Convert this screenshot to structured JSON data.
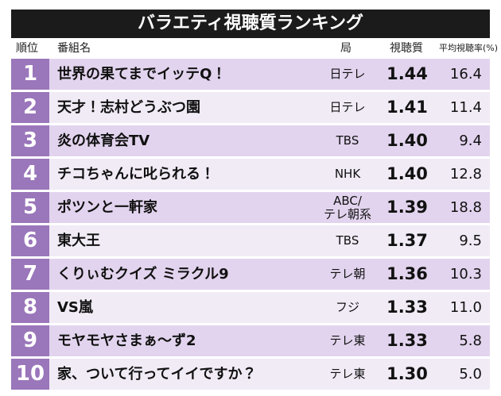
{
  "title": "バラエティ視聴質ランキング",
  "table": {
    "header": [
      "順位",
      "番組名",
      "局",
      "視聴質",
      "平均視聴率(%)"
    ],
    "rows": [
      [
        "1",
        "世界の果てまでイッテQ！",
        "日テレ",
        "1.44",
        "16.4"
      ],
      [
        "2",
        "天才！志村どうぶつ園",
        "日テレ",
        "1.41",
        "11.4"
      ],
      [
        "3",
        "炎の体育会TV",
        "TBS",
        "1.40",
        "9.4"
      ],
      [
        "4",
        "チコちゃんに叱られる！",
        "NHK",
        "1.40",
        "12.8"
      ],
      [
        "5",
        "ポツンと一軒家",
        [
          "ABC/",
          "テレ朝系"
        ],
        "1.39",
        "18.8"
      ],
      [
        "6",
        "東大王",
        "TBS",
        "1.37",
        "9.5"
      ],
      [
        "7",
        "くりぃむクイズ ミラクル9",
        "テレ朝",
        "1.36",
        "10.3"
      ],
      [
        "8",
        "VS嵐",
        "フジ",
        "1.33",
        "11.0"
      ],
      [
        "9",
        "モヤモヤさまぁ～ず2",
        "テレ東",
        "1.33",
        "5.8"
      ],
      [
        "10",
        "家、ついて行ってイイですか？",
        "テレ東",
        "1.30",
        "5.0"
      ]
    ]
  }
}
